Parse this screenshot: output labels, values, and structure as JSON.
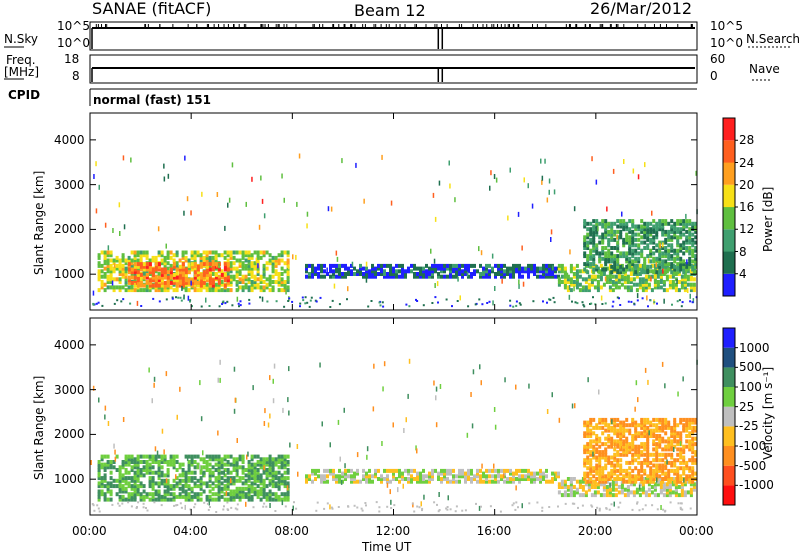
{
  "header": {
    "title": "SANAE (fitACF)",
    "beam": "Beam 12",
    "date": "26/Mar/2012"
  },
  "top_panels": {
    "nsky_label": "N.Sky",
    "nsearch_label": "N.Search",
    "nsky_ticks": [
      "10^5",
      "10^0"
    ],
    "nsky_right_ticks": [
      "10^5",
      "10^0"
    ],
    "freq_label_1": "Freq.",
    "freq_label_2": "[MHz]",
    "freq_ticks": [
      "18",
      "8"
    ],
    "nave_label": "Nave",
    "nave_ticks": [
      "60",
      "0"
    ],
    "cpid_label": "CPID",
    "cpid_value": "normal (fast) 151"
  },
  "colors": {
    "power_scale": [
      "#1f1fff",
      "#1f6f4f",
      "#3f9f6f",
      "#5fbf3f",
      "#f7e017",
      "#ff9f1f",
      "#ff5f1f",
      "#ff1f1f"
    ],
    "velocity_scale": [
      "#1f1fff",
      "#1f4f7f",
      "#3f8f5f",
      "#6fcf3f",
      "#bfbfbf",
      "#ffbf1f",
      "#ff8f1f",
      "#ff4f1f",
      "#ff0f0f"
    ]
  },
  "chart_data": [
    {
      "type": "heatmap",
      "name": "power",
      "ylabel": "Slant Range [km]",
      "ylim": [
        200,
        4600
      ],
      "yticks": [
        "1000",
        "2000",
        "3000",
        "4000"
      ],
      "xticks": [
        "00:00",
        "04:00",
        "08:00",
        "12:00",
        "16:00",
        "20:00",
        "00:00"
      ],
      "colorbar_label": "Power [dB]",
      "colorbar_ticks": [
        "4",
        "8",
        "12",
        "16",
        "20",
        "24",
        "28"
      ],
      "colorbar_range": [
        0,
        30
      ],
      "regions": [
        {
          "t0": 0.3,
          "t1": 7.8,
          "r0": 600,
          "r1": 1500,
          "level": 16
        },
        {
          "t0": 1.5,
          "t1": 5.5,
          "r0": 700,
          "r1": 1200,
          "level": 24
        },
        {
          "t0": 8.5,
          "t1": 18.5,
          "r0": 900,
          "r1": 1200,
          "level": 4
        },
        {
          "t0": 18.5,
          "t1": 23.9,
          "r0": 600,
          "r1": 1200,
          "level": 14
        },
        {
          "t0": 19.5,
          "t1": 23.9,
          "r0": 1000,
          "r1": 2200,
          "level": 10
        }
      ]
    },
    {
      "type": "heatmap",
      "name": "velocity",
      "ylabel": "Slant Range [km]",
      "xlabel": "Time UT",
      "ylim": [
        200,
        4600
      ],
      "yticks": [
        "1000",
        "2000",
        "3000",
        "4000"
      ],
      "xticks": [
        "00:00",
        "04:00",
        "08:00",
        "12:00",
        "16:00",
        "20:00",
        "00:00"
      ],
      "colorbar_label": "Velocity [m s⁻¹]",
      "colorbar_ticks": [
        "1000",
        "500",
        "100",
        "25",
        "-25",
        "-100",
        "-500",
        "-1000"
      ],
      "regions": [
        {
          "t0": 0.3,
          "t1": 7.8,
          "r0": 500,
          "r1": 1500,
          "level": 100
        },
        {
          "t0": 8.5,
          "t1": 18.5,
          "r0": 900,
          "r1": 1200,
          "level": 0
        },
        {
          "t0": 18.5,
          "t1": 23.9,
          "r0": 600,
          "r1": 1000,
          "level": 0
        },
        {
          "t0": 19.5,
          "t1": 23.9,
          "r0": 900,
          "r1": 2300,
          "level": -100
        }
      ]
    }
  ]
}
